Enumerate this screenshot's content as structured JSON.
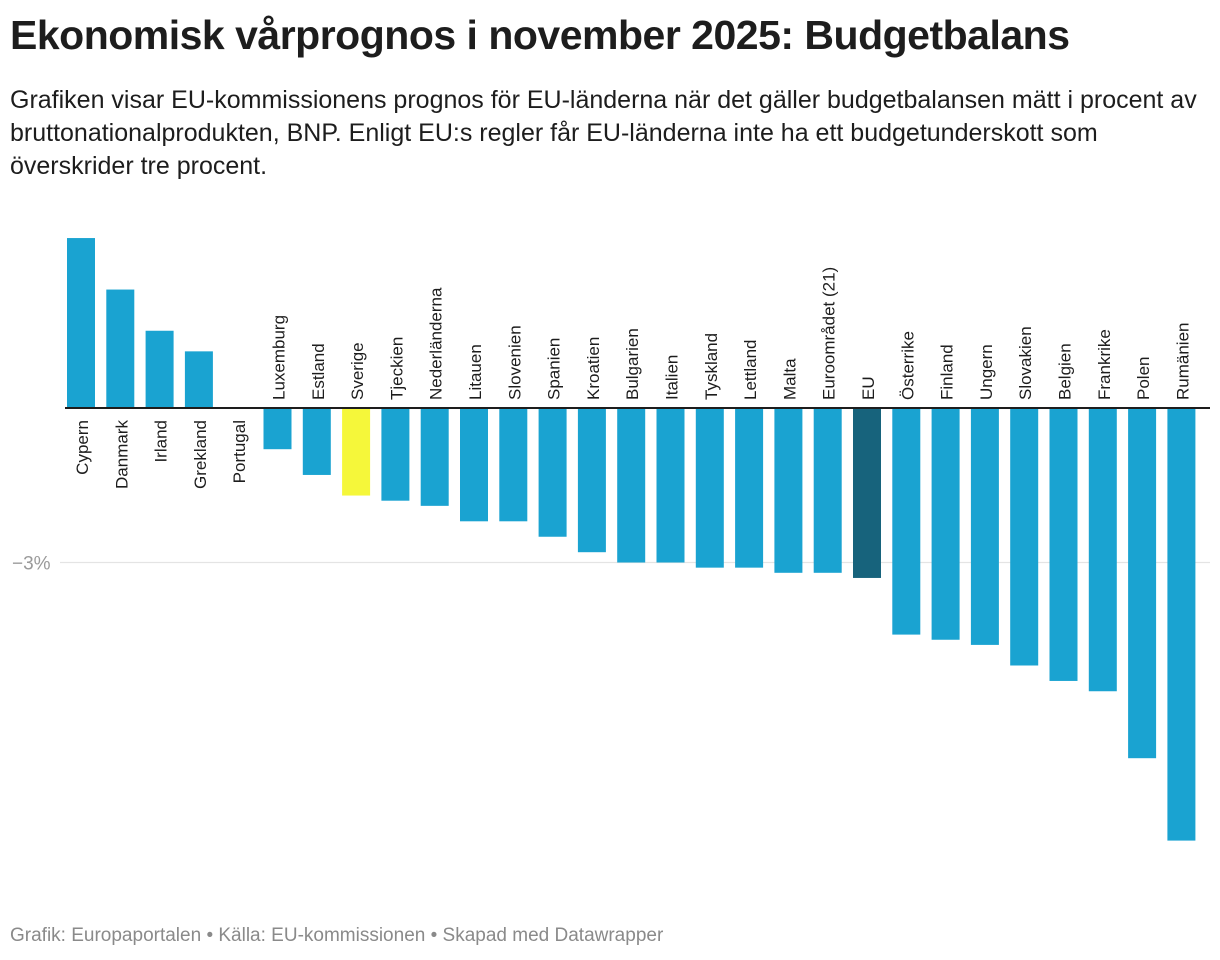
{
  "header": {
    "title": "Ekonomisk vårprognos i november 2025: Budgetbalans",
    "subtitle": "Grafiken visar EU-kommissionens prognos för EU-länderna när det gäller budgetbalansen mätt i procent av bruttonationalprodukten, BNP. Enligt EU:s regler får EU-länderna inte ha ett budgetunderskott som överskrider tre procent."
  },
  "footer": {
    "text": "Grafik: Europaportalen • Källa: EU-kommissionen • Skapad med Datawrapper"
  },
  "chart_data": {
    "type": "bar",
    "title": "Ekonomisk vårprognos i november 2025: Budgetbalans",
    "xlabel": "",
    "ylabel": "",
    "grid": "horizontal",
    "y_tick_labels": [
      "−3%"
    ],
    "y_ticks": [
      -3
    ],
    "ylim": [
      -9,
      3.3
    ],
    "categories": [
      "Cypern",
      "Danmark",
      "Irland",
      "Grekland",
      "Portugal",
      "Luxemburg",
      "Estland",
      "Sverige",
      "Tjeckien",
      "Nederländerna",
      "Litauen",
      "Slovenien",
      "Spanien",
      "Kroatien",
      "Bulgarien",
      "Italien",
      "Tyskland",
      "Lettland",
      "Malta",
      "Euroområdet (21)",
      "EU",
      "Österrike",
      "Finland",
      "Ungern",
      "Slovakien",
      "Belgien",
      "Frankrike",
      "Polen",
      "Rumänien"
    ],
    "values": [
      3.3,
      2.3,
      1.5,
      1.1,
      0.0,
      -0.8,
      -1.3,
      -1.7,
      -1.8,
      -1.9,
      -2.2,
      -2.2,
      -2.5,
      -2.8,
      -3.0,
      -3.0,
      -3.1,
      -3.1,
      -3.2,
      -3.2,
      -3.3,
      -4.4,
      -4.5,
      -4.6,
      -5.0,
      -5.3,
      -5.5,
      -6.8,
      -8.4
    ],
    "colors": {
      "default": "#1aa3d1",
      "Sverige": "#f5f73a",
      "EU": "#17637c",
      "axis": "#1d1d1d",
      "grid": "#e4e4e4",
      "tick_label": "#9a9a9a"
    }
  }
}
